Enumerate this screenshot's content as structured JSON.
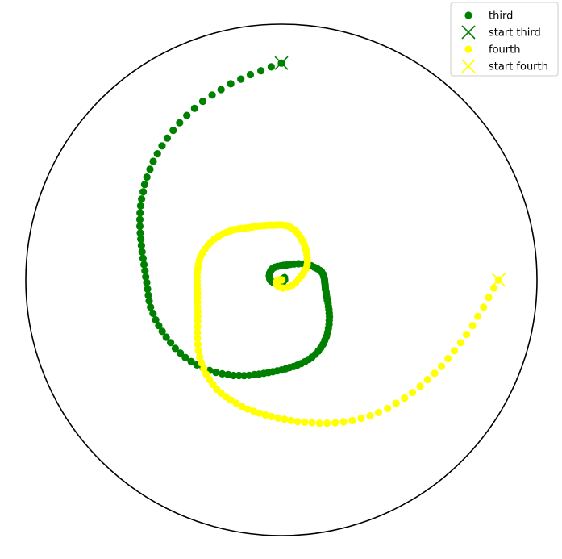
{
  "chart_data": {
    "type": "scatter",
    "projection": "polar",
    "grid": false,
    "axis_ticks": false,
    "title": "",
    "legend_position": "top-right",
    "rlim": [
      0,
      1.0
    ],
    "series": [
      {
        "name": "third",
        "color": "#008000",
        "marker": "circle",
        "start_name": "start third",
        "start_marker": "x",
        "start": [
          1.5708,
          0.848
        ],
        "points": [
          [
            1.5708,
            0.848
          ],
          [
            1.6185,
            0.834
          ],
          [
            1.6685,
            0.822
          ],
          [
            1.7209,
            0.812
          ],
          [
            1.7703,
            0.801
          ],
          [
            1.8235,
            0.792
          ],
          [
            1.8777,
            0.781
          ],
          [
            1.9294,
            0.772
          ],
          [
            1.9856,
            0.763
          ],
          [
            2.0394,
            0.752
          ],
          [
            2.0928,
            0.742
          ],
          [
            2.1456,
            0.732
          ],
          [
            2.1974,
            0.722
          ],
          [
            2.2489,
            0.712
          ],
          [
            2.2982,
            0.702
          ],
          [
            2.3478,
            0.692
          ],
          [
            2.3953,
            0.683
          ],
          [
            2.4424,
            0.672
          ],
          [
            2.4892,
            0.662
          ],
          [
            2.533,
            0.652
          ],
          [
            2.5745,
            0.641
          ],
          [
            2.6174,
            0.632
          ],
          [
            2.658,
            0.622
          ],
          [
            2.6989,
            0.612
          ],
          [
            2.7383,
            0.602
          ],
          [
            2.7792,
            0.592
          ],
          [
            2.82,
            0.582
          ],
          [
            2.8591,
            0.573
          ],
          [
            2.901,
            0.564
          ],
          [
            2.9427,
            0.556
          ],
          [
            2.9862,
            0.548
          ],
          [
            3.0306,
            0.541
          ],
          [
            3.0749,
            0.535
          ],
          [
            3.1199,
            0.531
          ],
          [
            3.1612,
            0.527
          ],
          [
            3.2102,
            0.525
          ],
          [
            3.2562,
            0.524
          ],
          [
            3.3004,
            0.524
          ],
          [
            3.347,
            0.523
          ],
          [
            3.3963,
            0.519
          ],
          [
            3.4494,
            0.516
          ],
          [
            3.4985,
            0.512
          ],
          [
            3.5497,
            0.508
          ],
          [
            3.6029,
            0.503
          ],
          [
            3.6567,
            0.498
          ],
          [
            3.7143,
            0.494
          ],
          [
            3.7679,
            0.488
          ],
          [
            3.821,
            0.483
          ],
          [
            3.8768,
            0.476
          ],
          [
            3.9297,
            0.469
          ],
          [
            3.9863,
            0.461
          ],
          [
            4.0413,
            0.452
          ],
          [
            4.0962,
            0.443
          ],
          [
            4.1499,
            0.434
          ],
          [
            4.1997,
            0.425
          ],
          [
            4.2485,
            0.418
          ],
          [
            4.295,
            0.409
          ],
          [
            4.3402,
            0.402
          ],
          [
            4.3867,
            0.394
          ],
          [
            4.4355,
            0.385
          ],
          [
            4.4788,
            0.379
          ],
          [
            4.5261,
            0.372
          ],
          [
            4.5727,
            0.366
          ],
          [
            4.6198,
            0.361
          ],
          [
            4.6676,
            0.356
          ],
          [
            4.7161,
            0.352
          ],
          [
            4.7608,
            0.348
          ],
          [
            4.806,
            0.344
          ],
          [
            4.8518,
            0.342
          ],
          [
            4.8974,
            0.339
          ],
          [
            4.9446,
            0.336
          ],
          [
            4.9931,
            0.333
          ],
          [
            5.0417,
            0.329
          ],
          [
            5.089,
            0.325
          ],
          [
            5.1401,
            0.32
          ],
          [
            5.1897,
            0.314
          ],
          [
            5.2378,
            0.307
          ],
          [
            5.2862,
            0.3
          ],
          [
            5.3343,
            0.291
          ],
          [
            5.3833,
            0.283
          ],
          [
            5.4321,
            0.274
          ],
          [
            5.4831,
            0.264
          ],
          [
            5.5324,
            0.255
          ],
          [
            5.5804,
            0.245
          ],
          [
            5.6296,
            0.237
          ],
          [
            5.6756,
            0.228
          ],
          [
            5.7261,
            0.219
          ],
          [
            5.7703,
            0.211
          ],
          [
            5.822,
            0.204
          ],
          [
            5.8685,
            0.196
          ],
          [
            5.9165,
            0.19
          ],
          [
            5.9677,
            0.185
          ],
          [
            6.0189,
            0.181
          ],
          [
            6.0702,
            0.176
          ],
          [
            6.1208,
            0.174
          ],
          [
            6.1704,
            0.172
          ],
          [
            6.2205,
            0.17
          ],
          [
            6.2701,
            0.169
          ],
          [
            0.0369,
            0.168
          ],
          [
            0.0823,
            0.166
          ],
          [
            0.1312,
            0.165
          ],
          [
            0.1876,
            0.161
          ],
          [
            0.2424,
            0.155
          ],
          [
            0.3019,
            0.147
          ],
          [
            0.3665,
            0.138
          ],
          [
            0.445,
            0.129
          ],
          [
            0.533,
            0.118
          ],
          [
            0.632,
            0.105
          ],
          [
            0.7559,
            0.092
          ],
          [
            0.8922,
            0.08
          ],
          [
            1.0466,
            0.07
          ],
          [
            1.2277,
            0.062
          ],
          [
            1.4241,
            0.058
          ],
          [
            1.6289,
            0.055
          ],
          [
            1.8355,
            0.055
          ],
          [
            2.0395,
            0.056
          ],
          [
            2.2366,
            0.056
          ],
          [
            2.428,
            0.055
          ],
          [
            2.6204,
            0.053
          ],
          [
            2.8241,
            0.05
          ],
          [
            3.0406,
            0.046
          ],
          [
            3.2659,
            0.04
          ],
          [
            3.5228,
            0.032
          ],
          [
            3.8434,
            0.024
          ],
          [
            4.3062,
            0.017
          ],
          [
            5.0625,
            0.013
          ],
          [
            0.0,
            0.013
          ],
          [
            0.6435,
            0.015
          ],
          [
            1.5708,
            0.002
          ]
        ]
      },
      {
        "name": "fourth",
        "color": "#ffff00",
        "marker": "circle",
        "start_name": "start fourth",
        "start_marker": "x",
        "start": [
          0.0,
          0.85
        ],
        "points": [
          [
            0.0,
            0.85
          ],
          [
            6.245,
            0.832
          ],
          [
            6.1983,
            0.814
          ],
          [
            6.1487,
            0.798
          ],
          [
            6.1,
            0.782
          ],
          [
            6.0486,
            0.769
          ],
          [
            5.997,
            0.755
          ],
          [
            5.9467,
            0.743
          ],
          [
            5.8947,
            0.731
          ],
          [
            5.8426,
            0.721
          ],
          [
            5.7885,
            0.712
          ],
          [
            5.7362,
            0.702
          ],
          [
            5.6844,
            0.692
          ],
          [
            5.6294,
            0.684
          ],
          [
            5.5733,
            0.676
          ],
          [
            5.5182,
            0.668
          ],
          [
            5.4615,
            0.659
          ],
          [
            5.4033,
            0.652
          ],
          [
            5.3452,
            0.643
          ],
          [
            5.2903,
            0.635
          ],
          [
            5.2348,
            0.625
          ],
          [
            5.1789,
            0.616
          ],
          [
            5.1252,
            0.606
          ],
          [
            5.073,
            0.597
          ],
          [
            5.0213,
            0.588
          ],
          [
            4.9727,
            0.58
          ],
          [
            4.9237,
            0.571
          ],
          [
            4.8747,
            0.564
          ],
          [
            4.8263,
            0.558
          ],
          [
            4.78,
            0.551
          ],
          [
            4.7347,
            0.545
          ],
          [
            4.6887,
            0.541
          ],
          [
            4.6407,
            0.536
          ],
          [
            4.5953,
            0.532
          ],
          [
            4.5481,
            0.528
          ],
          [
            4.5038,
            0.525
          ],
          [
            4.4575,
            0.522
          ],
          [
            4.4093,
            0.518
          ],
          [
            4.3611,
            0.514
          ],
          [
            4.3136,
            0.51
          ],
          [
            4.2698,
            0.506
          ],
          [
            4.2227,
            0.502
          ],
          [
            4.1781,
            0.497
          ],
          [
            4.1329,
            0.489
          ],
          [
            4.0868,
            0.481
          ],
          [
            4.0398,
            0.472
          ],
          [
            3.9944,
            0.462
          ],
          [
            3.9453,
            0.451
          ],
          [
            3.897,
            0.439
          ],
          [
            3.8478,
            0.426
          ],
          [
            3.7991,
            0.413
          ],
          [
            3.7494,
            0.4
          ],
          [
            3.701,
            0.388
          ],
          [
            3.6522,
            0.376
          ],
          [
            3.6025,
            0.366
          ],
          [
            3.5519,
            0.357
          ],
          [
            3.5045,
            0.35
          ],
          [
            3.4541,
            0.345
          ],
          [
            3.4027,
            0.34
          ],
          [
            3.351,
            0.336
          ],
          [
            3.303,
            0.332
          ],
          [
            3.2484,
            0.331
          ],
          [
            3.2019,
            0.33
          ],
          [
            3.1527,
            0.33
          ],
          [
            3.1035,
            0.33
          ],
          [
            3.0543,
            0.33
          ],
          [
            3.0051,
            0.33
          ],
          [
            2.9551,
            0.33
          ],
          [
            2.906,
            0.33
          ],
          [
            2.8579,
            0.329
          ],
          [
            2.808,
            0.326
          ],
          [
            2.758,
            0.322
          ],
          [
            2.7049,
            0.318
          ],
          [
            2.6495,
            0.313
          ],
          [
            2.5941,
            0.307
          ],
          [
            2.5401,
            0.3
          ],
          [
            2.4857,
            0.293
          ],
          [
            2.4325,
            0.285
          ],
          [
            2.3814,
            0.277
          ],
          [
            2.328,
            0.27
          ],
          [
            2.2805,
            0.262
          ],
          [
            2.2291,
            0.255
          ],
          [
            2.1781,
            0.247
          ],
          [
            2.1287,
            0.241
          ],
          [
            2.0747,
            0.236
          ],
          [
            2.0224,
            0.232
          ],
          [
            1.969,
            0.228
          ],
          [
            1.9158,
            0.225
          ],
          [
            1.865,
            0.222
          ],
          [
            1.8117,
            0.22
          ],
          [
            1.7585,
            0.218
          ],
          [
            1.7098,
            0.216
          ],
          [
            1.6635,
            0.215
          ],
          [
            1.617,
            0.215
          ],
          [
            1.5708,
            0.215
          ],
          [
            1.5197,
            0.214
          ],
          [
            1.4664,
            0.213
          ],
          [
            1.417,
            0.21
          ],
          [
            1.3696,
            0.206
          ],
          [
            1.313,
            0.202
          ],
          [
            1.2607,
            0.196
          ],
          [
            1.2051,
            0.189
          ],
          [
            1.1454,
            0.182
          ],
          [
            1.081,
            0.174
          ],
          [
            1.0153,
            0.167
          ],
          [
            0.9438,
            0.158
          ],
          [
            0.8706,
            0.15
          ],
          [
            0.7924,
            0.142
          ],
          [
            0.7106,
            0.133
          ],
          [
            0.6246,
            0.126
          ],
          [
            0.5277,
            0.117
          ],
          [
            0.425,
            0.105
          ],
          [
            0.3207,
            0.092
          ],
          [
            0.1974,
            0.08
          ],
          [
            0.0577,
            0.068
          ],
          [
            6.0865,
            0.057
          ],
          [
            5.822,
            0.047
          ],
          [
            5.4042,
            0.038
          ],
          [
            4.86,
            0.032
          ],
          [
            4.352,
            0.029
          ],
          [
            3.8877,
            0.026
          ],
          [
            3.5124,
            0.02
          ],
          [
            3.2581,
            0.016
          ],
          [
            3.0999,
            0.011
          ],
          [
            2.9764,
            0.005
          ],
          [
            0.0,
            0.002
          ]
        ]
      }
    ]
  },
  "legend": {
    "entries": [
      {
        "label": "third",
        "marker": "circle",
        "color": "#008000"
      },
      {
        "label": "start third",
        "marker": "x",
        "color": "#008000"
      },
      {
        "label": "fourth",
        "marker": "circle",
        "color": "#ffff00"
      },
      {
        "label": "start fourth",
        "marker": "x",
        "color": "#ffff00"
      }
    ]
  }
}
